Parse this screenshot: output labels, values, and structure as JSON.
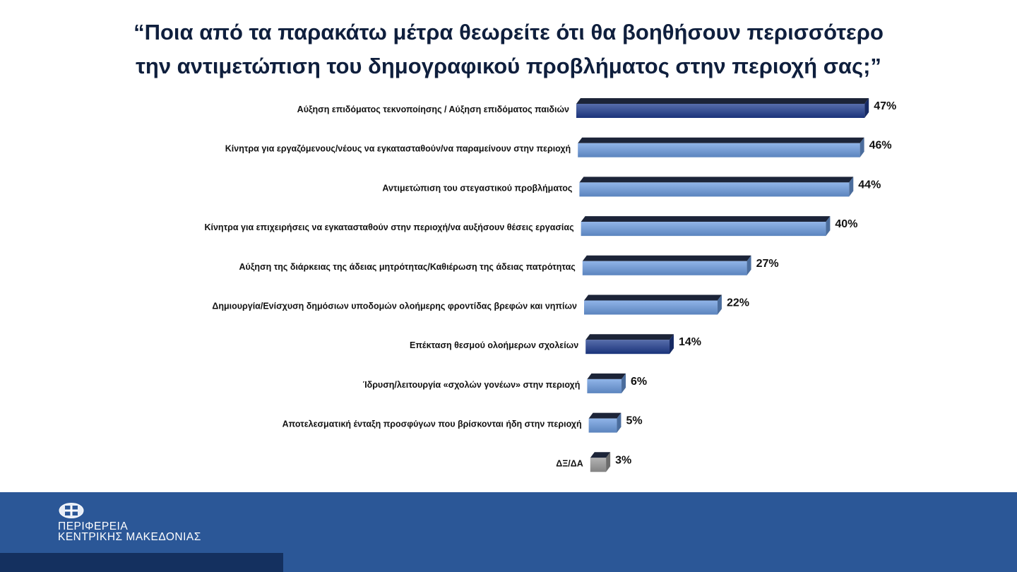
{
  "title_line1": "“Ποια από τα παρακάτω μέτρα θεωρείτε ότι θα βοηθήσουν περισσότερο",
  "title_line2": "την αντιμετώπιση του δημογραφικού προβλήματος στην περιοχή σας;”",
  "chart_data": {
    "type": "bar",
    "orientation": "horizontal",
    "style": "3d",
    "unit": "%",
    "categories": [
      "Αύξηση επιδόματος τεκνοποίησης / Αύξηση επιδόματος παιδιών",
      "Κίνητρα για εργαζόμενους/νέους να εγκατασταθούν/να παραμείνουν στην περιοχή",
      "Αντιμετώπιση του στεγαστικού προβλήματος",
      "Κίνητρα για επιχειρήσεις να εγκατασταθούν στην περιοχή/να αυξήσουν θέσεις εργασίας",
      "Αύξηση της διάρκειας της άδειας μητρότητας/Καθιέρωση της άδειας πατρότητας",
      "Δημιουργία/Ενίσχυση δημόσιων υποδομών ολοήμερης φροντίδας βρεφών και νηπίων",
      "Επέκταση θεσμού ολοήμερων σχολείων",
      "Ίδρυση/λειτουργία «σχολών γονέων» στην περιοχή",
      "Αποτελεσματική ένταξη προσφύγων που βρίσκονται ήδη στην περιοχή",
      "ΔΞ/ΔΑ"
    ],
    "values": [
      47,
      46,
      44,
      40,
      27,
      22,
      14,
      6,
      5,
      3
    ],
    "value_labels": [
      "47%",
      "46%",
      "44%",
      "40%",
      "27%",
      "22%",
      "14%",
      "6%",
      "5%",
      "3%"
    ],
    "bar_colors": [
      "#1f3c8f",
      "#6b9be0",
      "#6b9be0",
      "#6b9be0",
      "#6b9be0",
      "#6b9be0",
      "#1f3c8f",
      "#6b9be0",
      "#6b9be0",
      "#9a9a9a"
    ],
    "grid": false,
    "legend": "none"
  },
  "footer": {
    "org_line1": "ΠΕΡΙΦΕΡΕΙΑ",
    "org_line2": "ΚΕΝΤΡΙΚΗΣ ΜΑΚΕΔΟΝΙΑΣ",
    "logo_icon": "greek-emblem-icon",
    "band_color": "#2b5797"
  }
}
